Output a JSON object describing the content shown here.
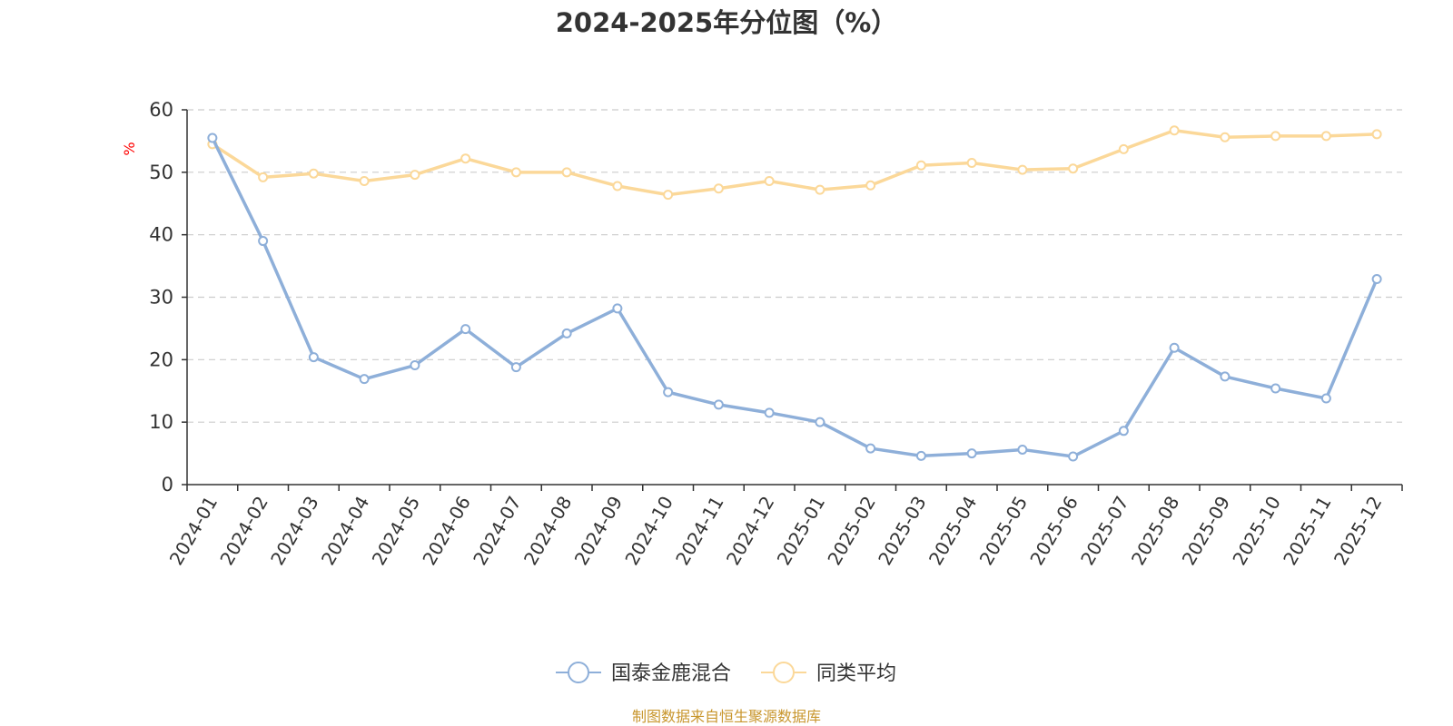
{
  "chart_data": {
    "type": "line",
    "title": "2024-2025年分位图（%）",
    "ylabel": "%",
    "xlabel": "",
    "ylim": [
      0,
      60
    ],
    "yticks": [
      0,
      10,
      20,
      30,
      40,
      50,
      60
    ],
    "grid": true,
    "legend_position": "bottom-center",
    "categories": [
      "2024-01",
      "2024-02",
      "2024-03",
      "2024-04",
      "2024-05",
      "2024-06",
      "2024-07",
      "2024-08",
      "2024-09",
      "2024-10",
      "2024-11",
      "2024-12",
      "2025-01",
      "2025-02",
      "2025-03",
      "2025-04",
      "2025-05",
      "2025-06",
      "2025-07",
      "2025-08",
      "2025-09",
      "2025-10",
      "2025-11",
      "2025-12"
    ],
    "series": [
      {
        "name": "国泰金鹿混合",
        "color": "#8eafd9",
        "values": [
          55.5,
          39.0,
          20.4,
          16.9,
          19.1,
          24.9,
          18.8,
          24.2,
          28.2,
          14.8,
          12.8,
          11.5,
          10.0,
          5.8,
          4.6,
          5.0,
          5.6,
          4.5,
          8.6,
          21.9,
          17.3,
          15.4,
          13.8,
          32.9
        ]
      },
      {
        "name": "同类平均",
        "color": "#fbd899",
        "values": [
          54.5,
          49.2,
          49.8,
          48.6,
          49.6,
          52.2,
          50.0,
          50.0,
          47.8,
          46.4,
          47.4,
          48.6,
          47.2,
          47.9,
          51.1,
          51.5,
          50.4,
          50.6,
          53.7,
          56.7,
          55.6,
          55.8,
          55.8,
          56.1
        ]
      }
    ]
  },
  "source_note": "制图数据来自恒生聚源数据库",
  "colors": {
    "axis": "#333333",
    "grid": "#cccccc",
    "ylabel": "#ff0000",
    "source_note": "#c8962d"
  }
}
